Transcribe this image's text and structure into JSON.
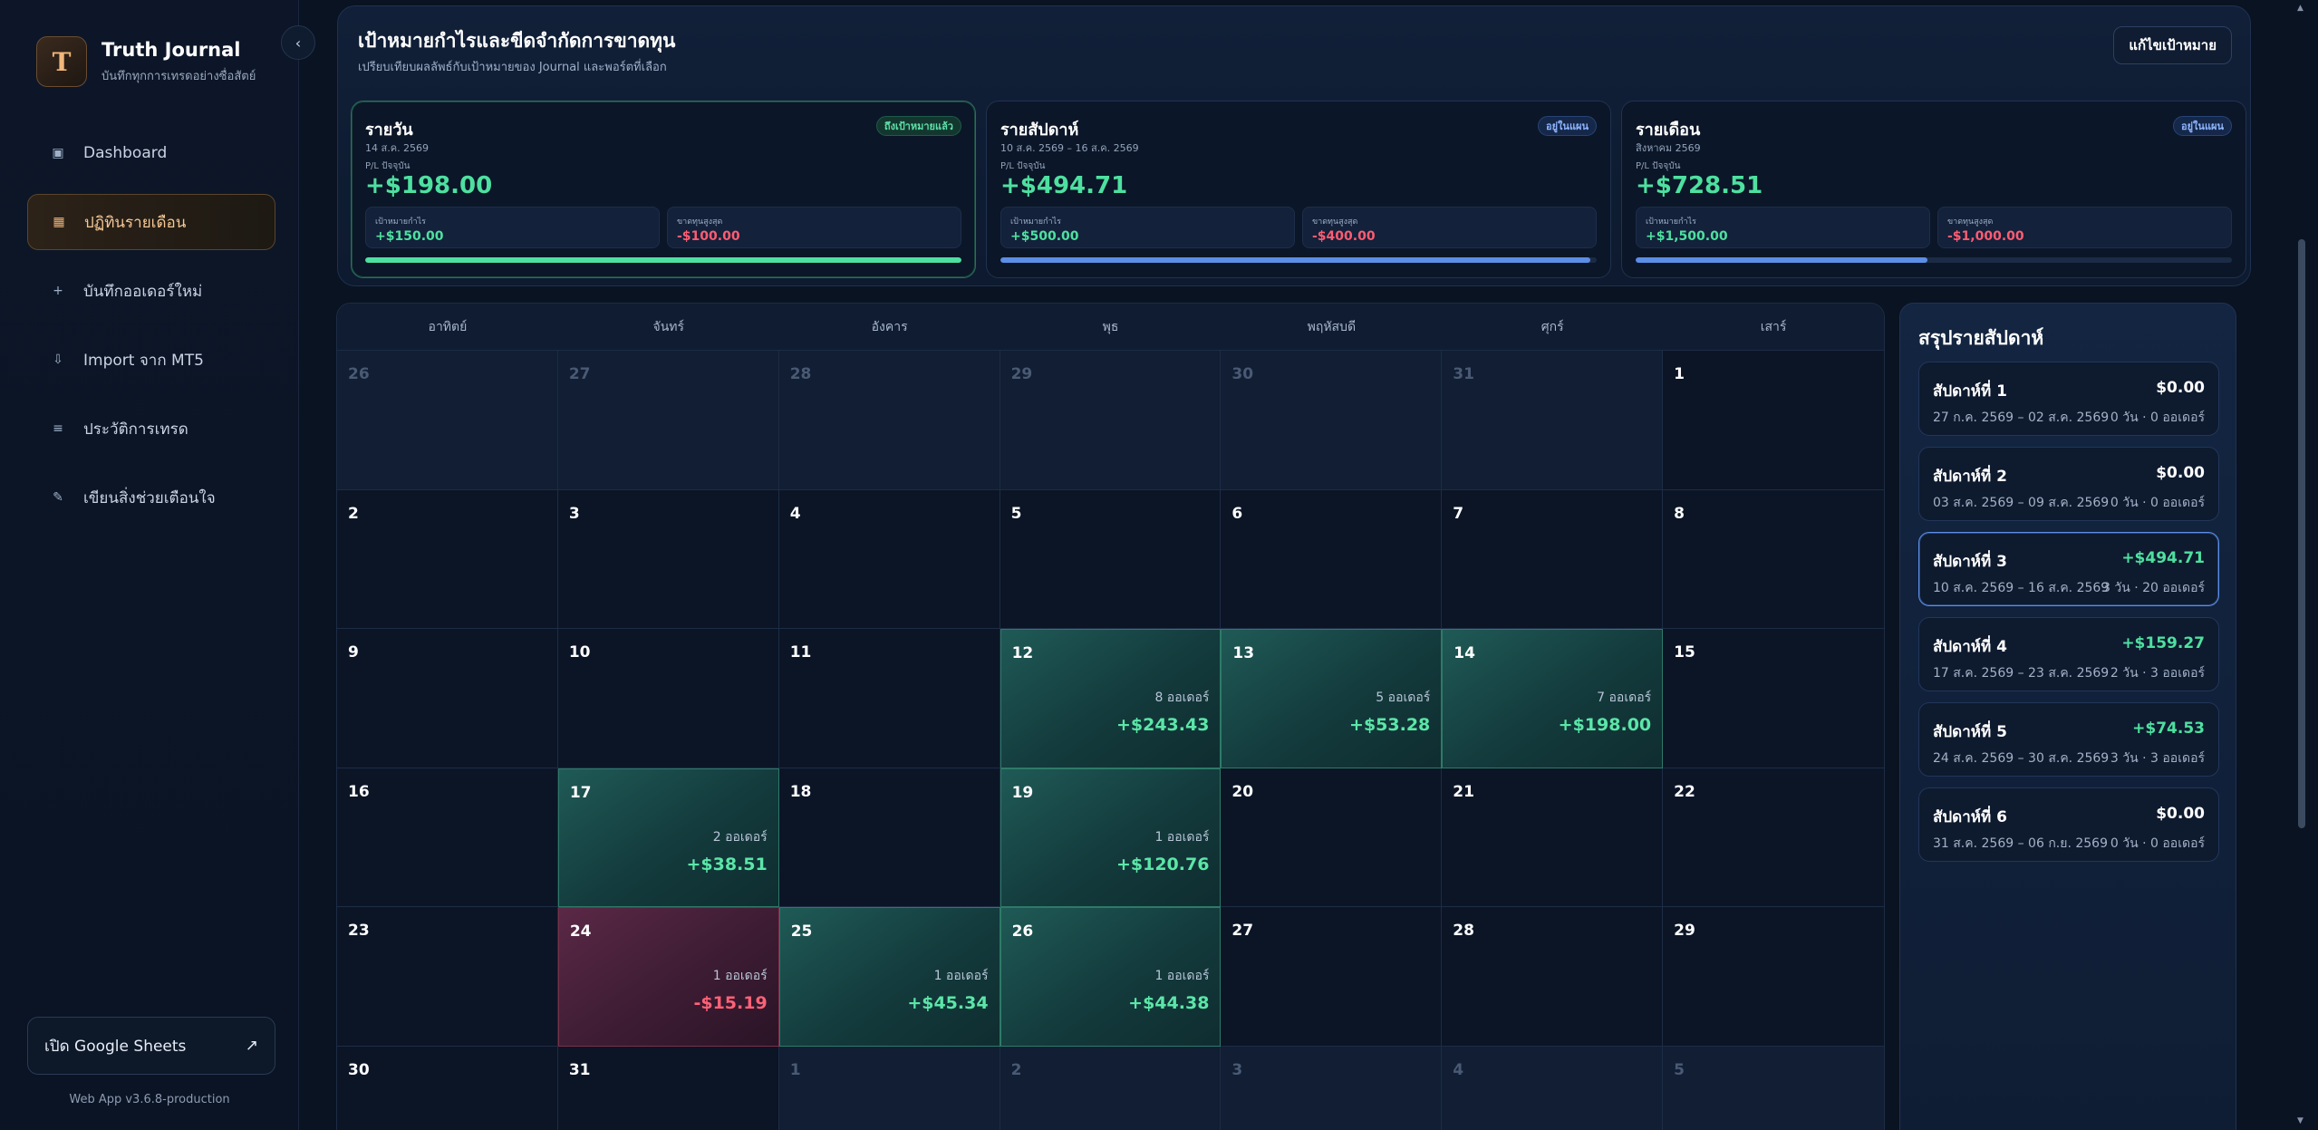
{
  "brand": {
    "logo": "T",
    "title": "Truth Journal",
    "subtitle": "บันทึกทุกการเทรดอย่างซื่อสัตย์"
  },
  "sidebar": {
    "collapse_icon": "‹",
    "items": [
      {
        "icon": "▣",
        "label": "Dashboard"
      },
      {
        "icon": "▦",
        "label": "ปฏิทินรายเดือน"
      },
      {
        "icon": "+",
        "label": "บันทึกออเดอร์ใหม่"
      },
      {
        "icon": "⇩",
        "label": "Import จาก MT5"
      },
      {
        "icon": "≡",
        "label": "ประวัติการเทรด"
      },
      {
        "icon": "✎",
        "label": "เขียนสิ่งช่วยเตือนใจ"
      }
    ],
    "sheets_label": "เปิด Google Sheets",
    "sheets_icon": "↗",
    "version": "Web App v3.6.8-production"
  },
  "goals": {
    "title": "เป้าหมายกำไรและขีดจำกัดการขาดทุน",
    "subtitle": "เปรียบเทียบผลลัพธ์กับเป้าหมายของ Journal และพอร์ตที่เลือก",
    "edit_label": "แก้ไขเป้าหมาย",
    "cards": [
      {
        "title": "รายวัน",
        "date": "14 ส.ค. 2569",
        "badge": "ถึงเป้าหมายแล้ว",
        "pl_label": "P/L ปัจจุบัน",
        "pl": "+$198.00",
        "target_label": "เป้าหมายกำไร",
        "target": "+$150.00",
        "loss_label": "ขาดทุนสูงสุด",
        "loss": "-$100.00",
        "progress": 1.0
      },
      {
        "title": "รายสัปดาห์",
        "date": "10 ส.ค. 2569 – 16 ส.ค. 2569",
        "badge": "อยู่ในแผน",
        "pl_label": "P/L ปัจจุบัน",
        "pl": "+$494.71",
        "target_label": "เป้าหมายกำไร",
        "target": "+$500.00",
        "loss_label": "ขาดทุนสูงสุด",
        "loss": "-$400.00",
        "progress": 0.99
      },
      {
        "title": "รายเดือน",
        "date": "สิงหาคม 2569",
        "badge": "อยู่ในแผน",
        "pl_label": "P/L ปัจจุบัน",
        "pl": "+$728.51",
        "target_label": "เป้าหมายกำไร",
        "target": "+$1,500.00",
        "loss_label": "ขาดทุนสูงสุด",
        "loss": "-$1,000.00",
        "progress": 0.49
      }
    ]
  },
  "colors": {
    "profit": "#4ee0a0",
    "loss": "#ff5c72",
    "accent_blue": "#5b8ee6",
    "accent_gold": "#f5c894"
  },
  "calendar": {
    "weekdays": [
      "อาทิตย์",
      "จันทร์",
      "อังคาร",
      "พุธ",
      "พฤหัสบดี",
      "ศุกร์",
      "เสาร์"
    ],
    "days": [
      {
        "d": "26",
        "out": true
      },
      {
        "d": "27",
        "out": true
      },
      {
        "d": "28",
        "out": true
      },
      {
        "d": "29",
        "out": true
      },
      {
        "d": "30",
        "out": true
      },
      {
        "d": "31",
        "out": true
      },
      {
        "d": "1"
      },
      {
        "d": "2"
      },
      {
        "d": "3"
      },
      {
        "d": "4"
      },
      {
        "d": "5"
      },
      {
        "d": "6"
      },
      {
        "d": "7"
      },
      {
        "d": "8"
      },
      {
        "d": "9"
      },
      {
        "d": "10"
      },
      {
        "d": "11"
      },
      {
        "d": "12",
        "orders": "8 ออเดอร์",
        "pnl": "+$243.43",
        "type": "win"
      },
      {
        "d": "13",
        "orders": "5 ออเดอร์",
        "pnl": "+$53.28",
        "type": "win"
      },
      {
        "d": "14",
        "orders": "7 ออเดอร์",
        "pnl": "+$198.00",
        "type": "win"
      },
      {
        "d": "15"
      },
      {
        "d": "16"
      },
      {
        "d": "17",
        "orders": "2 ออเดอร์",
        "pnl": "+$38.51",
        "type": "win"
      },
      {
        "d": "18"
      },
      {
        "d": "19",
        "orders": "1 ออเดอร์",
        "pnl": "+$120.76",
        "type": "win"
      },
      {
        "d": "20"
      },
      {
        "d": "21"
      },
      {
        "d": "22"
      },
      {
        "d": "23"
      },
      {
        "d": "24",
        "orders": "1 ออเดอร์",
        "pnl": "-$15.19",
        "type": "loss"
      },
      {
        "d": "25",
        "orders": "1 ออเดอร์",
        "pnl": "+$45.34",
        "type": "win"
      },
      {
        "d": "26",
        "orders": "1 ออเดอร์",
        "pnl": "+$44.38",
        "type": "win"
      },
      {
        "d": "27"
      },
      {
        "d": "28"
      },
      {
        "d": "29"
      },
      {
        "d": "30"
      },
      {
        "d": "31"
      },
      {
        "d": "1",
        "out": true
      },
      {
        "d": "2",
        "out": true
      },
      {
        "d": "3",
        "out": true
      },
      {
        "d": "4",
        "out": true
      },
      {
        "d": "5",
        "out": true
      }
    ]
  },
  "weekly": {
    "title": "สรุปรายสัปดาห์",
    "weeks": [
      {
        "name": "สัปดาห์ที่ 1",
        "total": "$0.00",
        "range": "27 ก.ค. 2569 – 02 ส.ค. 2569",
        "count": "0 วัน · 0 ออเดอร์",
        "positive": false,
        "active": false
      },
      {
        "name": "สัปดาห์ที่ 2",
        "total": "$0.00",
        "range": "03 ส.ค. 2569 – 09 ส.ค. 2569",
        "count": "0 วัน · 0 ออเดอร์",
        "positive": false,
        "active": false
      },
      {
        "name": "สัปดาห์ที่ 3",
        "total": "+$494.71",
        "range": "10 ส.ค. 2569 – 16 ส.ค. 2569",
        "count": "3 วัน · 20 ออเดอร์",
        "positive": true,
        "active": true
      },
      {
        "name": "สัปดาห์ที่ 4",
        "total": "+$159.27",
        "range": "17 ส.ค. 2569 – 23 ส.ค. 2569",
        "count": "2 วัน · 3 ออเดอร์",
        "positive": true,
        "active": false
      },
      {
        "name": "สัปดาห์ที่ 5",
        "total": "+$74.53",
        "range": "24 ส.ค. 2569 – 30 ส.ค. 2569",
        "count": "3 วัน · 3 ออเดอร์",
        "positive": true,
        "active": false
      },
      {
        "name": "สัปดาห์ที่ 6",
        "total": "$0.00",
        "range": "31 ส.ค. 2569 – 06 ก.ย. 2569",
        "count": "0 วัน · 0 ออเดอร์",
        "positive": false,
        "active": false
      }
    ]
  }
}
